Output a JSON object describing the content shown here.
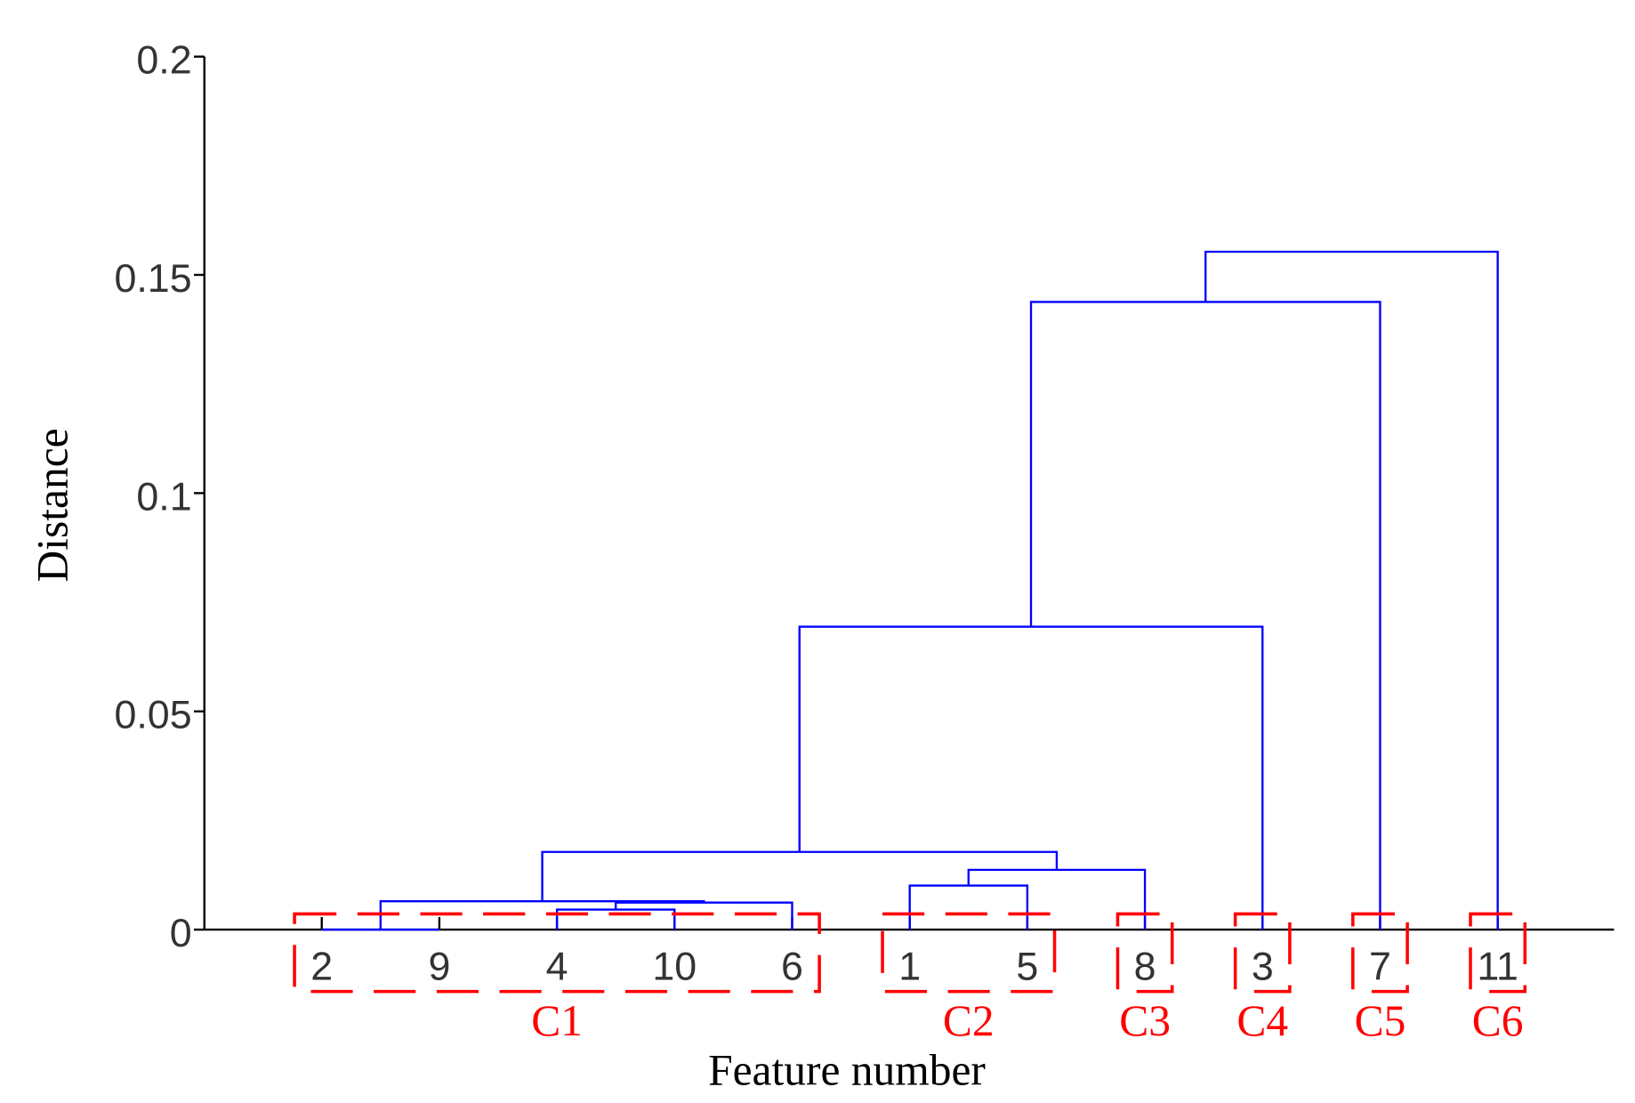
{
  "chart_data": {
    "type": "dendrogram",
    "xlabel": "Feature number",
    "ylabel": "Distance",
    "leaves": [
      "2",
      "9",
      "4",
      "10",
      "6",
      "1",
      "5",
      "8",
      "3",
      "7",
      "11"
    ],
    "links": [
      {
        "left": 0,
        "right": 1,
        "height": 0
      },
      {
        "left": 2,
        "right": 3,
        "height": 0.0046
      },
      {
        "left": 12,
        "right": 4,
        "height": 0.0062
      },
      {
        "left": 11,
        "right": 13,
        "height": 0.0065
      },
      {
        "left": 5,
        "right": 6,
        "height": 0.0101
      },
      {
        "left": 15,
        "right": 7,
        "height": 0.0137
      },
      {
        "left": 14,
        "right": 16,
        "height": 0.0178
      },
      {
        "left": 17,
        "right": 8,
        "height": 0.0694
      },
      {
        "left": 18,
        "right": 9,
        "height": 0.1438
      },
      {
        "left": 19,
        "right": 10,
        "height": 0.1553
      }
    ],
    "color": "#0000ff",
    "clusters": [
      {
        "label": "C1",
        "members": [
          "2",
          "9",
          "4",
          "10",
          "6"
        ]
      },
      {
        "label": "C2",
        "members": [
          "1",
          "5"
        ]
      },
      {
        "label": "C3",
        "members": [
          "8"
        ]
      },
      {
        "label": "C4",
        "members": [
          "3"
        ]
      },
      {
        "label": "C5",
        "members": [
          "7"
        ]
      },
      {
        "label": "C6",
        "members": [
          "11"
        ]
      }
    ],
    "cluster_color": "#ff0000",
    "ylim": [
      0,
      0.2
    ],
    "yticks": [
      0,
      0.05,
      0.1,
      0.15,
      0.2
    ]
  }
}
